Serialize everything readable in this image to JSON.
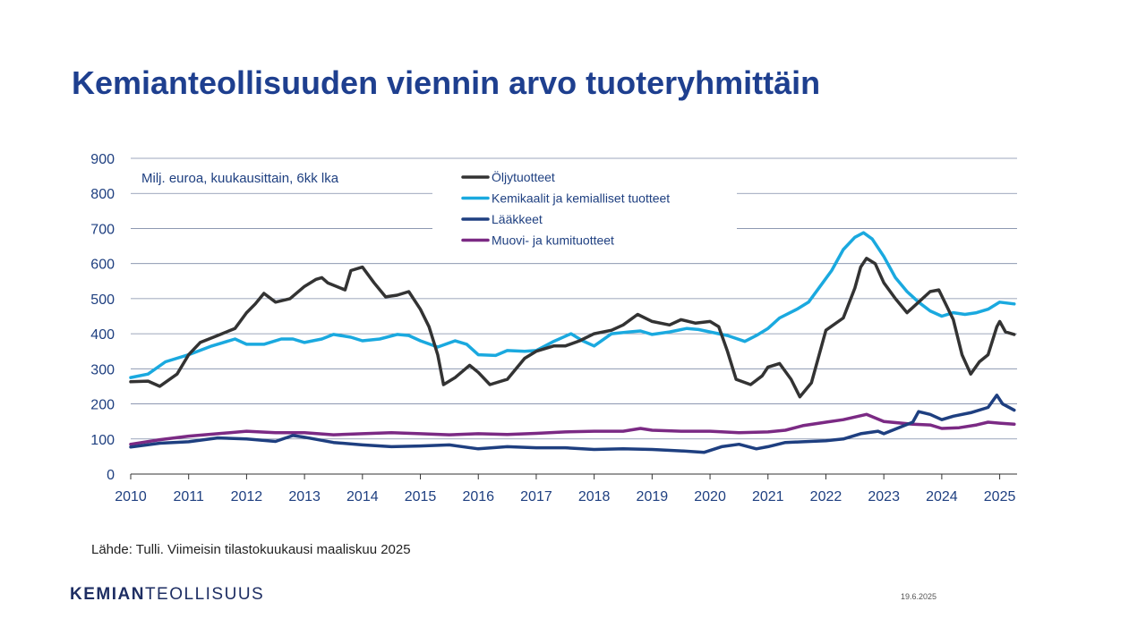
{
  "slide": {
    "title": "Kemianteollisuuden viennin arvo tuoteryhmittäin",
    "source": "Lähde: Tulli. Viimeisin tilastokuukausi maaliskuu 2025",
    "date": "19.6.2025",
    "logo": {
      "part1": "KEMIAN",
      "part2": "TEOLLISUUS"
    }
  },
  "chart_data": {
    "type": "line",
    "subtitle": "Milj. euroa, kuukausittain, 6kk lka",
    "x_unit": "year (decimal)",
    "xlim": [
      2010,
      2025.3
    ],
    "ylim": [
      0,
      900
    ],
    "yticks": [
      0,
      100,
      200,
      300,
      400,
      500,
      600,
      700,
      800,
      900
    ],
    "xticks": [
      "2010",
      "2011",
      "2012",
      "2013",
      "2014",
      "2015",
      "2016",
      "2017",
      "2018",
      "2019",
      "2020",
      "2021",
      "2022",
      "2023",
      "2024",
      "2025"
    ],
    "grid": true,
    "legend_position": "top-center",
    "series": [
      {
        "name": "Öljytuotteet",
        "color": "#333333",
        "points": [
          [
            2010,
            263
          ],
          [
            2010.3,
            265
          ],
          [
            2010.5,
            250
          ],
          [
            2010.8,
            285
          ],
          [
            2011,
            340
          ],
          [
            2011.2,
            375
          ],
          [
            2011.5,
            395
          ],
          [
            2011.8,
            415
          ],
          [
            2012,
            460
          ],
          [
            2012.15,
            485
          ],
          [
            2012.3,
            515
          ],
          [
            2012.5,
            490
          ],
          [
            2012.75,
            500
          ],
          [
            2013,
            535
          ],
          [
            2013.2,
            555
          ],
          [
            2013.3,
            560
          ],
          [
            2013.4,
            545
          ],
          [
            2013.7,
            525
          ],
          [
            2013.8,
            580
          ],
          [
            2014,
            590
          ],
          [
            2014.2,
            545
          ],
          [
            2014.4,
            505
          ],
          [
            2014.6,
            510
          ],
          [
            2014.8,
            520
          ],
          [
            2015,
            470
          ],
          [
            2015.15,
            420
          ],
          [
            2015.3,
            340
          ],
          [
            2015.4,
            255
          ],
          [
            2015.6,
            275
          ],
          [
            2015.85,
            310
          ],
          [
            2016,
            290
          ],
          [
            2016.2,
            255
          ],
          [
            2016.5,
            270
          ],
          [
            2016.8,
            330
          ],
          [
            2017,
            350
          ],
          [
            2017.3,
            365
          ],
          [
            2017.5,
            365
          ],
          [
            2017.75,
            380
          ],
          [
            2018,
            400
          ],
          [
            2018.3,
            410
          ],
          [
            2018.5,
            425
          ],
          [
            2018.75,
            455
          ],
          [
            2019,
            435
          ],
          [
            2019.3,
            425
          ],
          [
            2019.5,
            440
          ],
          [
            2019.75,
            430
          ],
          [
            2020,
            435
          ],
          [
            2020.15,
            420
          ],
          [
            2020.3,
            350
          ],
          [
            2020.45,
            270
          ],
          [
            2020.7,
            255
          ],
          [
            2020.9,
            280
          ],
          [
            2021,
            305
          ],
          [
            2021.2,
            315
          ],
          [
            2021.4,
            270
          ],
          [
            2021.55,
            220
          ],
          [
            2021.75,
            260
          ],
          [
            2022,
            410
          ],
          [
            2022.3,
            445
          ],
          [
            2022.5,
            530
          ],
          [
            2022.6,
            590
          ],
          [
            2022.7,
            615
          ],
          [
            2022.85,
            600
          ],
          [
            2023,
            545
          ],
          [
            2023.2,
            500
          ],
          [
            2023.4,
            460
          ],
          [
            2023.6,
            490
          ],
          [
            2023.8,
            520
          ],
          [
            2023.95,
            525
          ],
          [
            2024.2,
            440
          ],
          [
            2024.35,
            340
          ],
          [
            2024.5,
            285
          ],
          [
            2024.65,
            320
          ],
          [
            2024.8,
            340
          ],
          [
            2024.95,
            420
          ],
          [
            2025,
            435
          ],
          [
            2025.1,
            405
          ],
          [
            2025.25,
            398
          ]
        ]
      },
      {
        "name": "Kemikaalit ja kemialliset tuotteet",
        "color": "#1aa9df",
        "points": [
          [
            2010,
            275
          ],
          [
            2010.3,
            285
          ],
          [
            2010.6,
            320
          ],
          [
            2011,
            340
          ],
          [
            2011.4,
            365
          ],
          [
            2011.8,
            385
          ],
          [
            2012,
            370
          ],
          [
            2012.3,
            370
          ],
          [
            2012.6,
            385
          ],
          [
            2012.8,
            385
          ],
          [
            2013,
            375
          ],
          [
            2013.3,
            385
          ],
          [
            2013.5,
            398
          ],
          [
            2013.8,
            390
          ],
          [
            2014,
            380
          ],
          [
            2014.3,
            385
          ],
          [
            2014.6,
            398
          ],
          [
            2014.8,
            395
          ],
          [
            2015,
            380
          ],
          [
            2015.3,
            362
          ],
          [
            2015.6,
            380
          ],
          [
            2015.8,
            370
          ],
          [
            2016,
            340
          ],
          [
            2016.3,
            338
          ],
          [
            2016.5,
            352
          ],
          [
            2016.8,
            350
          ],
          [
            2017,
            352
          ],
          [
            2017.3,
            378
          ],
          [
            2017.6,
            400
          ],
          [
            2017.8,
            380
          ],
          [
            2018,
            365
          ],
          [
            2018.3,
            400
          ],
          [
            2018.6,
            405
          ],
          [
            2018.8,
            408
          ],
          [
            2019,
            398
          ],
          [
            2019.3,
            405
          ],
          [
            2019.6,
            415
          ],
          [
            2019.8,
            412
          ],
          [
            2020,
            405
          ],
          [
            2020.3,
            395
          ],
          [
            2020.6,
            378
          ],
          [
            2020.8,
            395
          ],
          [
            2021,
            415
          ],
          [
            2021.2,
            445
          ],
          [
            2021.5,
            470
          ],
          [
            2021.7,
            490
          ],
          [
            2021.9,
            535
          ],
          [
            2022.1,
            580
          ],
          [
            2022.3,
            640
          ],
          [
            2022.5,
            675
          ],
          [
            2022.65,
            688
          ],
          [
            2022.8,
            670
          ],
          [
            2023,
            620
          ],
          [
            2023.2,
            560
          ],
          [
            2023.4,
            520
          ],
          [
            2023.6,
            490
          ],
          [
            2023.8,
            465
          ],
          [
            2024,
            450
          ],
          [
            2024.2,
            460
          ],
          [
            2024.4,
            455
          ],
          [
            2024.6,
            460
          ],
          [
            2024.8,
            470
          ],
          [
            2025,
            490
          ],
          [
            2025.25,
            485
          ]
        ]
      },
      {
        "name": "Lääkkeet",
        "color": "#1e3f80",
        "points": [
          [
            2010,
            77
          ],
          [
            2010.5,
            88
          ],
          [
            2011,
            92
          ],
          [
            2011.5,
            103
          ],
          [
            2012,
            100
          ],
          [
            2012.5,
            93
          ],
          [
            2012.8,
            110
          ],
          [
            2013,
            105
          ],
          [
            2013.5,
            90
          ],
          [
            2014,
            83
          ],
          [
            2014.5,
            78
          ],
          [
            2015,
            80
          ],
          [
            2015.5,
            83
          ],
          [
            2016,
            72
          ],
          [
            2016.5,
            78
          ],
          [
            2017,
            75
          ],
          [
            2017.5,
            75
          ],
          [
            2018,
            70
          ],
          [
            2018.5,
            72
          ],
          [
            2019,
            70
          ],
          [
            2019.5,
            66
          ],
          [
            2019.9,
            62
          ],
          [
            2020.2,
            78
          ],
          [
            2020.5,
            85
          ],
          [
            2020.8,
            72
          ],
          [
            2021,
            78
          ],
          [
            2021.3,
            90
          ],
          [
            2021.6,
            92
          ],
          [
            2022,
            95
          ],
          [
            2022.3,
            100
          ],
          [
            2022.6,
            115
          ],
          [
            2022.9,
            122
          ],
          [
            2023,
            115
          ],
          [
            2023.3,
            135
          ],
          [
            2023.5,
            148
          ],
          [
            2023.6,
            178
          ],
          [
            2023.8,
            170
          ],
          [
            2024,
            155
          ],
          [
            2024.2,
            165
          ],
          [
            2024.5,
            175
          ],
          [
            2024.8,
            190
          ],
          [
            2024.95,
            225
          ],
          [
            2025.05,
            200
          ],
          [
            2025.25,
            182
          ]
        ]
      },
      {
        "name": "Muovi- ja kumituotteet",
        "color": "#7b2a84",
        "points": [
          [
            2010,
            85
          ],
          [
            2010.5,
            98
          ],
          [
            2011,
            108
          ],
          [
            2011.5,
            115
          ],
          [
            2012,
            122
          ],
          [
            2012.5,
            118
          ],
          [
            2013,
            118
          ],
          [
            2013.5,
            112
          ],
          [
            2014,
            115
          ],
          [
            2014.5,
            118
          ],
          [
            2015,
            115
          ],
          [
            2015.5,
            112
          ],
          [
            2016,
            115
          ],
          [
            2016.5,
            113
          ],
          [
            2017,
            116
          ],
          [
            2017.5,
            120
          ],
          [
            2018,
            122
          ],
          [
            2018.5,
            122
          ],
          [
            2018.8,
            130
          ],
          [
            2019,
            125
          ],
          [
            2019.5,
            122
          ],
          [
            2020,
            122
          ],
          [
            2020.5,
            118
          ],
          [
            2021,
            120
          ],
          [
            2021.3,
            125
          ],
          [
            2021.6,
            138
          ],
          [
            2022,
            148
          ],
          [
            2022.3,
            155
          ],
          [
            2022.7,
            170
          ],
          [
            2023,
            150
          ],
          [
            2023.5,
            142
          ],
          [
            2023.8,
            140
          ],
          [
            2024,
            130
          ],
          [
            2024.3,
            132
          ],
          [
            2024.6,
            140
          ],
          [
            2024.8,
            148
          ],
          [
            2025,
            145
          ],
          [
            2025.25,
            142
          ]
        ]
      }
    ]
  }
}
